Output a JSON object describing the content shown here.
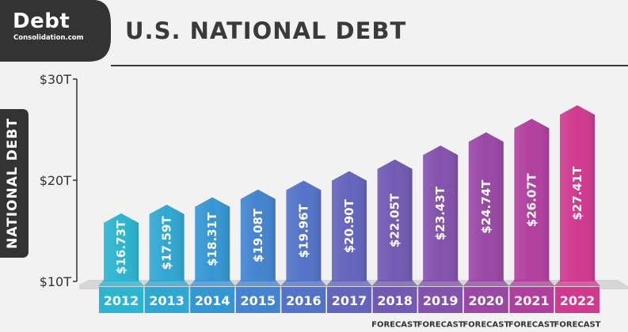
{
  "brand": {
    "logo_word": "Debt",
    "logo_sub": "Consolidation.com"
  },
  "colors": {
    "dark": "#333333",
    "start": "#2ab4d0",
    "mid": "#7b55b0",
    "end": "#d8398f"
  },
  "chart_data": {
    "type": "bar",
    "title": "U.S. NATIONAL DEBT",
    "ylabel": "NATIONAL DEBT",
    "ylim": [
      10,
      30
    ],
    "yticks": [
      {
        "value": 30,
        "label": "$30T"
      },
      {
        "value": 20,
        "label": "$20T"
      },
      {
        "value": 10,
        "label": "$10T"
      }
    ],
    "categories": [
      "2012",
      "2013",
      "2014",
      "2015",
      "2016",
      "2017",
      "2018",
      "2019",
      "2020",
      "2021",
      "2022"
    ],
    "values": [
      16.73,
      17.59,
      18.31,
      19.08,
      19.96,
      20.9,
      22.05,
      23.43,
      24.74,
      26.07,
      27.41
    ],
    "value_labels": [
      "$16.73T",
      "$17.59T",
      "$18.31T",
      "$19.08T",
      "$19.96T",
      "$20.90T",
      "$22.05T",
      "$23.43T",
      "$24.74T",
      "$26.07T",
      "$27.41T"
    ],
    "sublabels": [
      "",
      "",
      "",
      "",
      "",
      "",
      "FORECAST",
      "FORECAST",
      "FORECAST",
      "FORECAST",
      "FORECAST"
    ],
    "bar_colors": [
      "#2bb5d1",
      "#2fa7d3",
      "#3596d4",
      "#4284d0",
      "#5273c8",
      "#6364bd",
      "#7259b3",
      "#8451ad",
      "#9a47a6",
      "#b13f9e",
      "#d1398f"
    ]
  }
}
